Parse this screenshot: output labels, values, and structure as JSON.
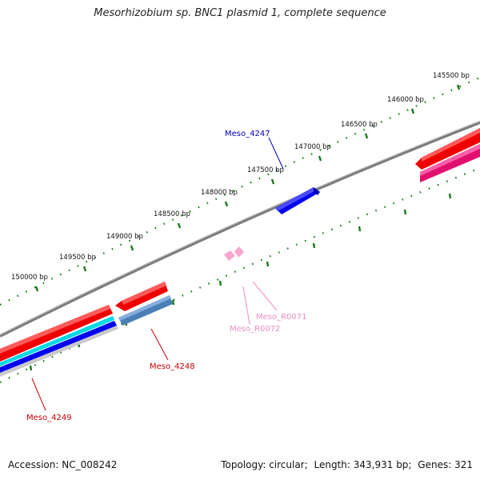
{
  "title": "Mesorhizobium sp. BNC1 plasmid 1, complete sequence",
  "accession_label": "Accession:",
  "accession": "NC_008242",
  "topology_label": "Topology:",
  "topology": "circular;",
  "length_label": "Length:",
  "length": "343,931 bp;",
  "genes_label": "Genes:",
  "genes": "321",
  "colors": {
    "backbone": "#808080",
    "tick": "#1a7a1a",
    "forward_cds": "#0000ee",
    "reverse_cds": "#ee0000",
    "rna": "#f6a6cf",
    "label_forward": "#0000c0",
    "label_reverse": "#cc0000",
    "label_rna": "#e98fc2"
  },
  "ticks": [
    {
      "label": "145500 bp"
    },
    {
      "label": "146000 bp"
    },
    {
      "label": "146500 bp"
    },
    {
      "label": "147000 bp"
    },
    {
      "label": "147500 bp"
    },
    {
      "label": "148000 bp"
    },
    {
      "label": "148500 bp"
    },
    {
      "label": "149000 bp"
    },
    {
      "label": "149500 bp"
    },
    {
      "label": "150000 bp"
    }
  ],
  "gene_labels": [
    {
      "name": "Meso_4247",
      "kind": "forward_cds"
    },
    {
      "name": "Meso_4248",
      "kind": "reverse_cds"
    },
    {
      "name": "Meso_4249",
      "kind": "reverse_cds"
    },
    {
      "name": "Meso_R0071",
      "kind": "rna"
    },
    {
      "name": "Meso_R0072",
      "kind": "rna"
    }
  ]
}
